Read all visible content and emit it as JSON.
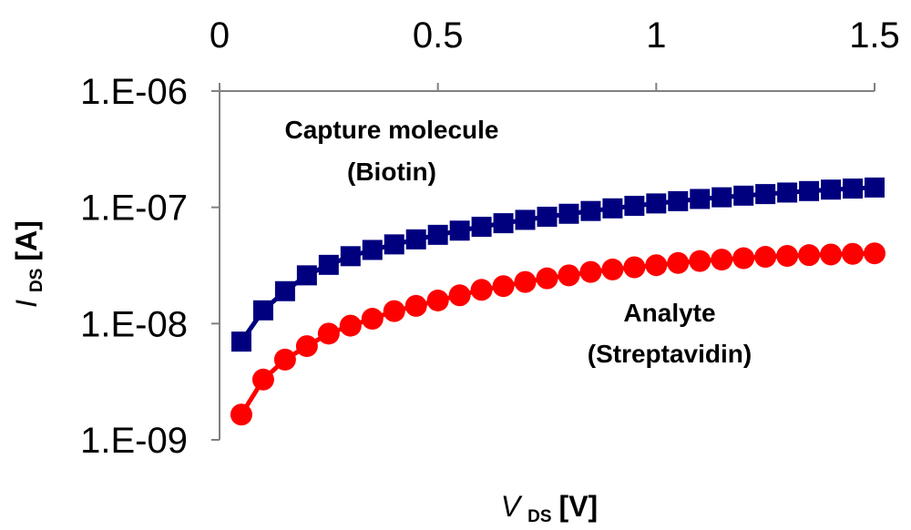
{
  "chart_data": {
    "type": "line",
    "title": "",
    "xlabel": {
      "main": "V",
      "sub": "DS",
      "unit": "[V]"
    },
    "ylabel": {
      "main": "I",
      "sub": "DS",
      "unit": "[A]"
    },
    "xlim": [
      0,
      1.5
    ],
    "ylim": [
      1e-09,
      1e-06
    ],
    "yscale": "log",
    "x_axis_position": "top",
    "x_ticks": [
      {
        "value": 0,
        "label": "0"
      },
      {
        "value": 0.5,
        "label": "0.5"
      },
      {
        "value": 1,
        "label": "1"
      },
      {
        "value": 1.5,
        "label": "1.5"
      }
    ],
    "y_ticks": [
      {
        "value": 1e-06,
        "label": "1.E-06"
      },
      {
        "value": 1e-07,
        "label": "1.E-07"
      },
      {
        "value": 1e-08,
        "label": "1.E-08"
      },
      {
        "value": 1e-09,
        "label": "1.E-09"
      }
    ],
    "x": [
      0.05,
      0.1,
      0.15,
      0.2,
      0.25,
      0.3,
      0.35,
      0.4,
      0.45,
      0.5,
      0.55,
      0.6,
      0.65,
      0.7,
      0.75,
      0.8,
      0.85,
      0.9,
      0.95,
      1.0,
      1.05,
      1.1,
      1.15,
      1.2,
      1.25,
      1.3,
      1.35,
      1.4,
      1.45,
      1.5
    ],
    "series": [
      {
        "name": "Capture molecule (Biotin)",
        "color": "#00007f",
        "marker": "square",
        "values": [
          7e-09,
          1.3e-08,
          1.9e-08,
          2.6e-08,
          3.2e-08,
          3.8e-08,
          4.3e-08,
          4.8e-08,
          5.3e-08,
          5.8e-08,
          6.3e-08,
          6.8e-08,
          7.3e-08,
          7.8e-08,
          8.3e-08,
          8.8e-08,
          9.3e-08,
          9.8e-08,
          1.03e-07,
          1.08e-07,
          1.13e-07,
          1.18e-07,
          1.22e-07,
          1.26e-07,
          1.3e-07,
          1.34e-07,
          1.38e-07,
          1.42e-07,
          1.45e-07,
          1.48e-07
        ]
      },
      {
        "name": "Analyte (Streptavidin)",
        "color": "#ff0000",
        "marker": "circle",
        "values": [
          1.65e-09,
          3.3e-09,
          4.9e-09,
          6.4e-09,
          8.2e-09,
          9.6e-09,
          1.1e-08,
          1.28e-08,
          1.42e-08,
          1.58e-08,
          1.75e-08,
          1.95e-08,
          2.1e-08,
          2.28e-08,
          2.45e-08,
          2.6e-08,
          2.78e-08,
          2.92e-08,
          3.05e-08,
          3.18e-08,
          3.32e-08,
          3.45e-08,
          3.55e-08,
          3.65e-08,
          3.75e-08,
          3.82e-08,
          3.88e-08,
          3.93e-08,
          3.98e-08,
          4.02e-08
        ]
      }
    ],
    "annotations": [
      {
        "for_series": 0,
        "lines": [
          "Capture molecule",
          "(Biotin)"
        ]
      },
      {
        "for_series": 1,
        "lines": [
          "Analyte",
          "(Streptavidin)"
        ]
      }
    ],
    "grid": false,
    "legend": "none"
  }
}
